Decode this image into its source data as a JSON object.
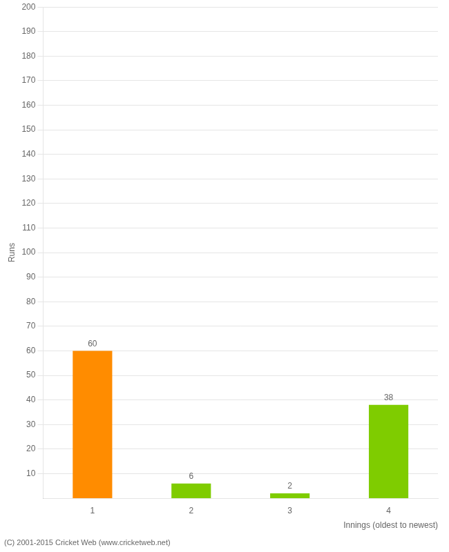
{
  "chart_data": {
    "type": "bar",
    "categories": [
      "1",
      "2",
      "3",
      "4"
    ],
    "values": [
      60,
      6,
      2,
      38
    ],
    "colors": [
      "#FF8C00",
      "#7FCC00",
      "#7FCC00",
      "#7FCC00"
    ],
    "xlabel": "Innings (oldest to newest)",
    "ylabel": "Runs",
    "ylim": [
      0,
      200
    ],
    "yticks": [
      10,
      20,
      30,
      40,
      50,
      60,
      70,
      80,
      90,
      100,
      110,
      120,
      130,
      140,
      150,
      160,
      170,
      180,
      190,
      200
    ],
    "grid": true,
    "data_labels": true,
    "annotations": [
      "(C) 2001-2015 Cricket Web (www.cricketweb.net)"
    ]
  }
}
